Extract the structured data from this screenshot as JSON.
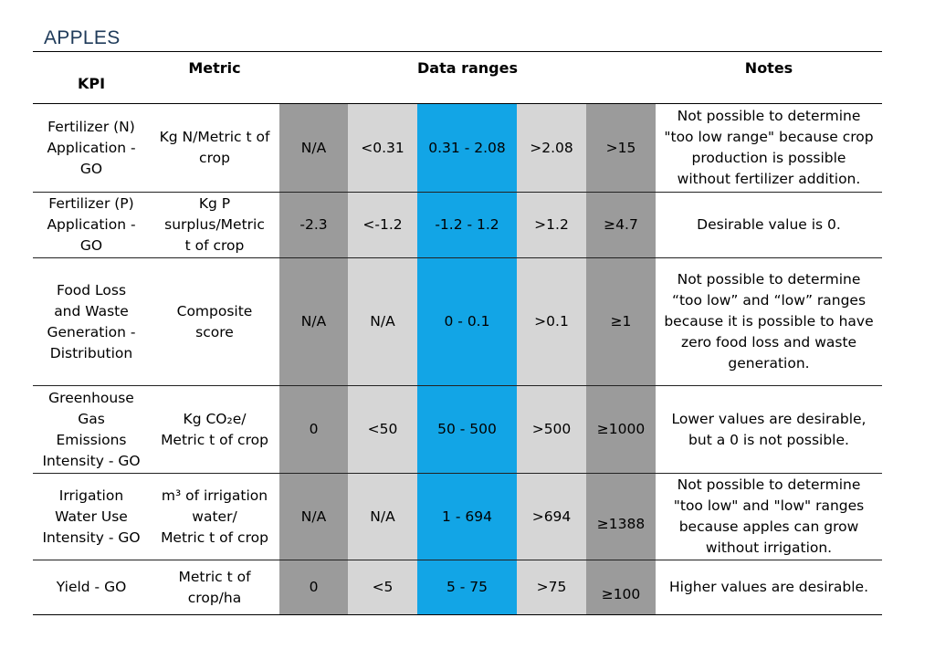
{
  "title": "APPLES",
  "headers": {
    "kpi": "KPI",
    "metric": "Metric",
    "ranges": "Data ranges",
    "notes": "Notes"
  },
  "rows": [
    {
      "kpi": [
        "Fertilizer (N)",
        "Application -",
        "GO"
      ],
      "metric": [
        "Kg N/Metric t of",
        "crop"
      ],
      "ranges": [
        "N/A",
        "<0.31",
        "0.31 - 2.08",
        ">2.08",
        ">15"
      ],
      "notes": [
        "Not possible to determine",
        "\"too low range\" because crop",
        "production is possible",
        "without fertilizer addition."
      ]
    },
    {
      "kpi": [
        "Fertilizer (P)",
        "Application -",
        "GO"
      ],
      "metric": [
        "Kg P",
        "surplus/Metric",
        "t of crop"
      ],
      "ranges": [
        "-2.3",
        "<-1.2",
        "-1.2 - 1.2",
        ">1.2",
        "≥4.7"
      ],
      "notes": [
        "Desirable value is 0."
      ]
    },
    {
      "kpi": [
        "Food Loss",
        "and Waste",
        "Generation -",
        "Distribution"
      ],
      "metric": [
        "Composite",
        "score"
      ],
      "ranges": [
        "N/A",
        "N/A",
        "0 - 0.1",
        ">0.1",
        "≥1"
      ],
      "notes": [
        "Not possible to determine",
        "“too low” and “low” ranges",
        "because it is possible to have",
        "zero food loss and waste",
        "generation."
      ]
    },
    {
      "kpi": [
        "Greenhouse",
        "Gas",
        "Emissions",
        "Intensity - GO"
      ],
      "metric": [
        "Kg CO₂e/",
        "Metric t of crop"
      ],
      "ranges": [
        "0",
        "<50",
        "50 - 500",
        ">500",
        "≥1000"
      ],
      "notes": [
        "Lower values are desirable,",
        "but a 0 is not possible."
      ]
    },
    {
      "kpi": [
        "Irrigation",
        "Water Use",
        "Intensity - GO"
      ],
      "metric": [
        "m³ of irrigation",
        "water/",
        "Metric t of crop"
      ],
      "ranges": [
        "N/A",
        "N/A",
        "1 - 694",
        ">694",
        "≥1388"
      ],
      "notes": [
        "Not possible to determine",
        "\"too low\" and \"low\" ranges",
        "because apples can grow",
        "without irrigation."
      ]
    },
    {
      "kpi": [
        "Yield - GO"
      ],
      "metric": [
        "Metric t of",
        "crop/ha"
      ],
      "ranges": [
        "0",
        "<5",
        "5 - 75",
        ">75",
        "≥100"
      ],
      "notes": [
        "Higher values are desirable."
      ]
    }
  ]
}
